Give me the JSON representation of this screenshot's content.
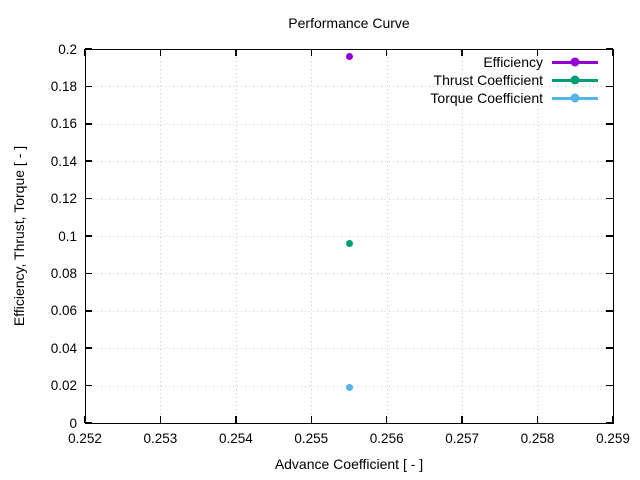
{
  "figure": {
    "background_color": "#ffffff",
    "frame_color": "#000000",
    "grid_color": "#c9c9c9"
  },
  "chart_data": {
    "type": "scatter",
    "title": "Performance Curve",
    "xlabel": "Advance Coefficient [ - ]",
    "ylabel": "Efficiency, Thrust, Torque [ - ]",
    "xlim": [
      0.252,
      0.259
    ],
    "ylim": [
      0,
      0.2
    ],
    "xtick_labels": [
      "0.252",
      "0.253",
      "0.254",
      "0.255",
      "0.256",
      "0.257",
      "0.258",
      "0.259"
    ],
    "ytick_labels": [
      "0",
      "0.02",
      "0.04",
      "0.06",
      "0.08",
      "0.1",
      "0.12",
      "0.14",
      "0.16",
      "0.18",
      "0.2"
    ],
    "grid": "dotted",
    "tick_style": "inward-mirrored",
    "legend_position": "top-right-inside",
    "series": [
      {
        "name": "Efficiency",
        "color": "#9400d3",
        "marker": "filled-circle",
        "x": [
          0.2555
        ],
        "y": [
          0.196
        ]
      },
      {
        "name": "Thrust Coefficient",
        "color": "#009e73",
        "marker": "filled-circle",
        "x": [
          0.2555
        ],
        "y": [
          0.096
        ]
      },
      {
        "name": "Torque Coefficient",
        "color": "#56b4e9",
        "marker": "filled-circle",
        "x": [
          0.2555
        ],
        "y": [
          0.019
        ]
      }
    ]
  }
}
